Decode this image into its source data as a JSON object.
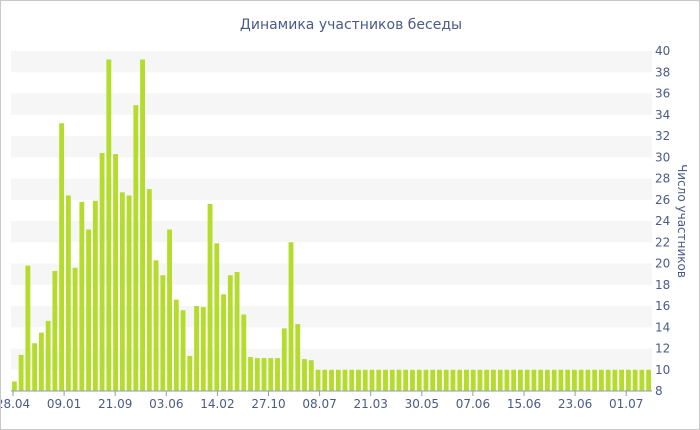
{
  "chart_data": {
    "type": "bar",
    "title": "Динамика участников беседы",
    "ylabel": "Число участников",
    "xlabel": "",
    "ylim": [
      8,
      40
    ],
    "y_ticks": [
      8,
      10,
      12,
      14,
      16,
      18,
      20,
      22,
      24,
      26,
      28,
      30,
      32,
      34,
      36,
      38,
      40
    ],
    "x_tick_labels": [
      "28.04",
      "09.01",
      "21.09",
      "03.06",
      "14.02",
      "27.10",
      "08.07",
      "21.03",
      "30.05",
      "07.06",
      "15.06",
      "23.06",
      "01.07"
    ],
    "grid": "horizontal-bands",
    "bar_color": "#b5dc2d",
    "values": [
      8.9,
      11.4,
      19.8,
      12.5,
      13.5,
      14.6,
      19.3,
      33.2,
      26.4,
      19.6,
      25.8,
      23.2,
      25.9,
      30.4,
      39.2,
      30.3,
      26.7,
      26.4,
      34.9,
      39.2,
      27.0,
      20.3,
      18.9,
      23.2,
      16.6,
      15.6,
      11.3,
      16.0,
      15.9,
      25.6,
      21.9,
      17.1,
      18.9,
      19.2,
      15.2,
      11.2,
      11.1,
      11.1,
      11.1,
      11.1,
      13.9,
      22.0,
      14.3,
      11.0,
      10.9,
      10.0,
      10.0,
      10.0,
      10.0,
      10.0,
      10.0,
      10.0,
      10.0,
      10.0,
      10.0,
      10.0,
      10.0,
      10.0,
      10.0,
      10.0,
      10.0,
      10.0,
      10.0,
      10.0,
      10.0,
      10.0,
      10.0,
      10.0,
      10.0,
      10.0,
      10.0,
      10.0,
      10.0,
      10.0,
      10.0,
      10.0,
      10.0,
      10.0,
      10.0,
      10.0,
      10.0,
      10.0,
      10.0,
      10.0,
      10.0,
      10.0,
      10.0,
      10.0,
      10.0,
      10.0,
      10.0,
      10.0,
      10.0,
      10.0,
      10.0
    ]
  }
}
